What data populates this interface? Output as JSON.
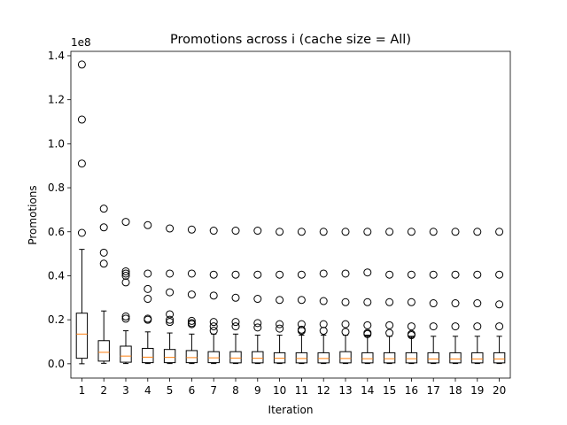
{
  "chart_data": {
    "type": "box",
    "title": "Promotions across i (cache size = All)",
    "xlabel": "Iteration",
    "ylabel": "Promotions",
    "y_multiplier_label": "1e8",
    "ylim": [
      -6500000,
      142000000
    ],
    "y_ticks": [
      0,
      20000000,
      40000000,
      60000000,
      80000000,
      100000000,
      120000000,
      140000000
    ],
    "y_tick_labels": [
      "0.0",
      "0.2",
      "0.4",
      "0.6",
      "0.8",
      "1.0",
      "1.2",
      "1.4"
    ],
    "grid": false,
    "colors": {
      "box": "#000000",
      "median": "#ff7f0e",
      "flier": "#000000"
    },
    "categories": [
      "1",
      "2",
      "3",
      "4",
      "5",
      "6",
      "7",
      "8",
      "9",
      "10",
      "11",
      "12",
      "13",
      "14",
      "15",
      "16",
      "17",
      "18",
      "19",
      "20"
    ],
    "boxes": [
      {
        "whislo": 0,
        "q1": 2500000,
        "med": 13500000,
        "q3": 23000000,
        "whishi": 52000000,
        "fliers": [
          136000000,
          111000000,
          91000000,
          59500000
        ]
      },
      {
        "whislo": 200000,
        "q1": 1200000,
        "med": 5200000,
        "q3": 10500000,
        "whishi": 24000000,
        "fliers": [
          70500000,
          62000000,
          50500000,
          45500000
        ]
      },
      {
        "whislo": 100000,
        "q1": 700000,
        "med": 3500000,
        "q3": 8000000,
        "whishi": 15000000,
        "fliers": [
          64500000,
          42000000,
          41000000,
          40000000,
          37000000,
          21500000,
          20500000
        ]
      },
      {
        "whislo": 100000,
        "q1": 500000,
        "med": 3000000,
        "q3": 7000000,
        "whishi": 14500000,
        "fliers": [
          63000000,
          41000000,
          34000000,
          29500000,
          20500000,
          20000000
        ]
      },
      {
        "whislo": 100000,
        "q1": 500000,
        "med": 2900000,
        "q3": 6500000,
        "whishi": 14000000,
        "fliers": [
          61500000,
          41000000,
          32500000,
          22500000,
          20000000,
          19000000
        ]
      },
      {
        "whislo": 100000,
        "q1": 500000,
        "med": 2800000,
        "q3": 6000000,
        "whishi": 13500000,
        "fliers": [
          61000000,
          41000000,
          31500000,
          19500000,
          18500000,
          18000000
        ]
      },
      {
        "whislo": 100000,
        "q1": 500000,
        "med": 2700000,
        "q3": 5500000,
        "whishi": 13500000,
        "fliers": [
          60500000,
          40500000,
          31000000,
          19000000,
          17000000,
          15000000
        ]
      },
      {
        "whislo": 100000,
        "q1": 400000,
        "med": 2600000,
        "q3": 5500000,
        "whishi": 13500000,
        "fliers": [
          60500000,
          40500000,
          30000000,
          19000000,
          17000000
        ]
      },
      {
        "whislo": 100000,
        "q1": 400000,
        "med": 2500000,
        "q3": 5500000,
        "whishi": 13000000,
        "fliers": [
          60500000,
          40500000,
          29500000,
          18500000,
          16500000
        ]
      },
      {
        "whislo": 100000,
        "q1": 400000,
        "med": 2500000,
        "q3": 5000000,
        "whishi": 13000000,
        "fliers": [
          60000000,
          40500000,
          29000000,
          18000000,
          16000000
        ]
      },
      {
        "whislo": 100000,
        "q1": 400000,
        "med": 2400000,
        "q3": 5000000,
        "whishi": 13000000,
        "fliers": [
          60000000,
          40500000,
          29000000,
          18000000,
          15500000,
          15000000
        ]
      },
      {
        "whislo": 100000,
        "q1": 400000,
        "med": 2400000,
        "q3": 5000000,
        "whishi": 13000000,
        "fliers": [
          60000000,
          41000000,
          28500000,
          18000000,
          15000000
        ]
      },
      {
        "whislo": 100000,
        "q1": 400000,
        "med": 2400000,
        "q3": 5500000,
        "whishi": 13000000,
        "fliers": [
          60000000,
          41000000,
          28000000,
          18000000,
          14500000
        ]
      },
      {
        "whislo": 100000,
        "q1": 400000,
        "med": 2300000,
        "q3": 5000000,
        "whishi": 13000000,
        "fliers": [
          60000000,
          41500000,
          28000000,
          17500000,
          14000000,
          13500000
        ]
      },
      {
        "whislo": 100000,
        "q1": 400000,
        "med": 2300000,
        "q3": 5000000,
        "whishi": 12500000,
        "fliers": [
          60000000,
          40500000,
          28000000,
          17500000,
          14000000
        ]
      },
      {
        "whislo": 100000,
        "q1": 400000,
        "med": 2300000,
        "q3": 5000000,
        "whishi": 12500000,
        "fliers": [
          60000000,
          40500000,
          28000000,
          17000000,
          13500000,
          13000000
        ]
      },
      {
        "whislo": 100000,
        "q1": 400000,
        "med": 2200000,
        "q3": 5000000,
        "whishi": 12500000,
        "fliers": [
          60000000,
          40500000,
          27500000,
          17000000
        ]
      },
      {
        "whislo": 100000,
        "q1": 400000,
        "med": 2200000,
        "q3": 5000000,
        "whishi": 12500000,
        "fliers": [
          60000000,
          40500000,
          27500000,
          17000000
        ]
      },
      {
        "whislo": 100000,
        "q1": 400000,
        "med": 2200000,
        "q3": 5000000,
        "whishi": 12500000,
        "fliers": [
          60000000,
          40500000,
          27500000,
          17000000
        ]
      },
      {
        "whislo": 100000,
        "q1": 400000,
        "med": 2200000,
        "q3": 5000000,
        "whishi": 12500000,
        "fliers": [
          60000000,
          40500000,
          27000000,
          17000000
        ]
      }
    ]
  }
}
